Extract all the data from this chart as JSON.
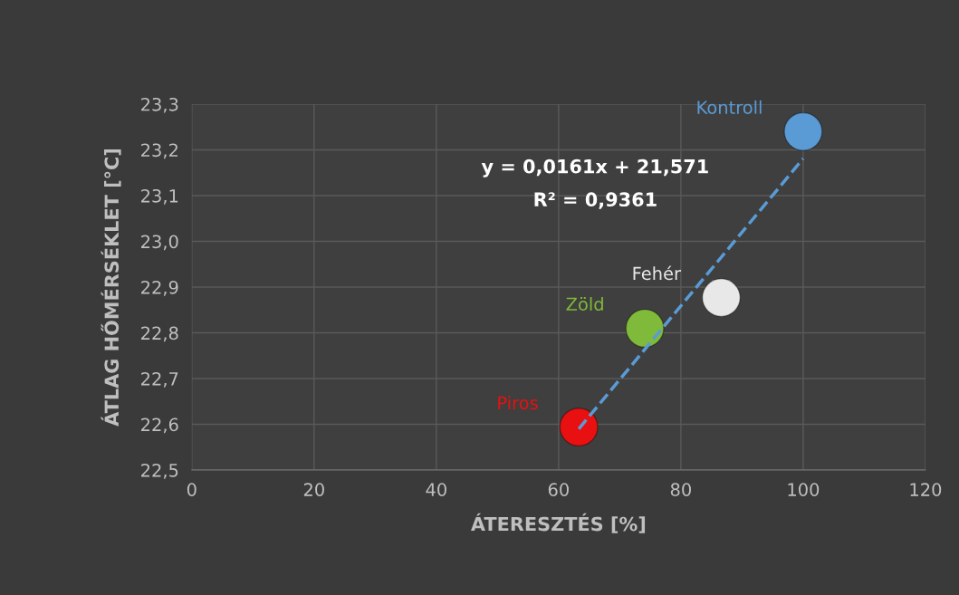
{
  "chart_data": {
    "type": "scatter",
    "xlabel": "ÁTERESZTÉS [%]",
    "ylabel": "ÁTLAG HŐMÉRSÉKLET [°C]",
    "xlim": [
      0,
      120
    ],
    "xticks": [
      0,
      20,
      40,
      60,
      80,
      100,
      120
    ],
    "ylim": [
      22.5,
      23.3
    ],
    "yticks": [
      {
        "value": 22.5,
        "label": "22,5"
      },
      {
        "value": 22.6,
        "label": "22,6"
      },
      {
        "value": 22.7,
        "label": "22,7"
      },
      {
        "value": 22.8,
        "label": "22,8"
      },
      {
        "value": 22.9,
        "label": "22,9"
      },
      {
        "value": 23.0,
        "label": "23,0"
      },
      {
        "value": 23.1,
        "label": "23,1"
      },
      {
        "value": 23.2,
        "label": "23,2"
      },
      {
        "value": 23.3,
        "label": "23,3"
      }
    ],
    "grid": true,
    "marker": "circle",
    "series": [
      {
        "type": "line",
        "color": "#5b9bd5",
        "line_style": "dashed",
        "marker": "none",
        "x": [
          63.3,
          100
        ],
        "values": [
          22.59,
          23.181
        ]
      },
      {
        "name": "Piros",
        "color": "#e81010",
        "x": [
          63.3
        ],
        "values": [
          22.594
        ]
      },
      {
        "name": "Zöld",
        "color": "#7fba3a",
        "x": [
          74.1
        ],
        "values": [
          22.81
        ]
      },
      {
        "name": "Fehér",
        "color": "#e8e8e8",
        "x": [
          86.6
        ],
        "values": [
          22.877
        ]
      },
      {
        "name": "Kontroll",
        "color": "#5b9bd5",
        "x": [
          100
        ],
        "values": [
          23.24
        ]
      }
    ],
    "annotations": [
      "y = 0,0161x + 21,571",
      "R² = 0,9361"
    ]
  }
}
